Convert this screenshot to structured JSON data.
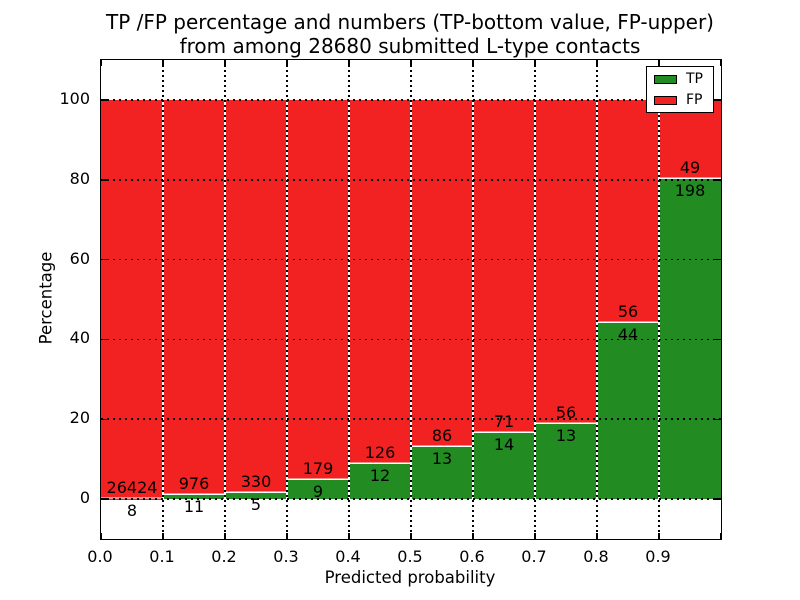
{
  "title": {
    "line1": "TP /FP percentage and numbers (TP-bottom value, FP-upper)",
    "line2": "from among 28680 submitted L-type contacts"
  },
  "axes": {
    "xlabel": "Predicted probability",
    "ylabel": "Percentage"
  },
  "chart_data": {
    "type": "bar",
    "stacked": true,
    "normalized_to_percent": 100,
    "title": "TP /FP percentage and numbers (TP-bottom value, FP-upper) from among 28680 submitted L-type contacts",
    "xlabel": "Predicted probability",
    "ylabel": "Percentage",
    "xlim": [
      0.0,
      1.0
    ],
    "ylim": [
      -10,
      110
    ],
    "bin_edges": [
      0.0,
      0.1,
      0.2,
      0.3,
      0.4,
      0.5,
      0.6,
      0.7,
      0.8,
      0.9,
      1.0
    ],
    "x_tick_labels": [
      "0.0",
      "0.1",
      "0.2",
      "0.3",
      "0.4",
      "0.5",
      "0.6",
      "0.7",
      "0.8",
      "0.9"
    ],
    "y_tick_values": [
      0,
      20,
      40,
      60,
      80,
      100
    ],
    "series": [
      {
        "name": "TP",
        "color": "#228b22",
        "counts": [
          8,
          11,
          5,
          9,
          12,
          13,
          14,
          13,
          44,
          198
        ]
      },
      {
        "name": "FP",
        "color": "#f32222",
        "counts": [
          26424,
          976,
          330,
          179,
          126,
          86,
          71,
          56,
          56,
          49
        ]
      }
    ],
    "tp_percent": [
      0.03,
      1.11,
      1.49,
      4.79,
      8.7,
      13.13,
      16.47,
      18.84,
      44.0,
      80.16
    ],
    "total_submitted": 28680,
    "legend_position": "upper right",
    "grid": "dotted-both-axes"
  }
}
